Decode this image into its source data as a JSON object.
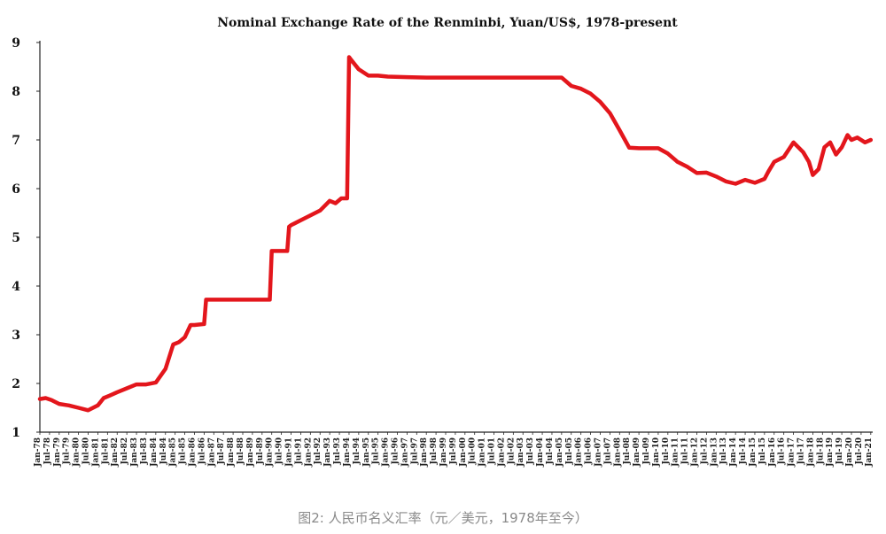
{
  "caption": "图2: 人民币名义汇率（元／美元，1978年至今）",
  "chart_data": {
    "type": "line",
    "title": "Nominal Exchange Rate of the  Renminbi, Yuan/US$, 1978-present",
    "xlabel": "",
    "ylabel": "",
    "ylim": [
      1,
      9
    ],
    "xlim": [
      1978.0,
      2021.1
    ],
    "y_ticks": [
      1,
      2,
      3,
      4,
      5,
      6,
      7,
      8,
      9
    ],
    "grid": false,
    "legend": "none",
    "line_color": "#e3161c",
    "x_tick_note": "dense rotated monthly labels 'Jan-78' ... 'Jan-21' along the x-axis",
    "series": [
      {
        "x": [
          1978.0,
          1978.3,
          1978.6,
          1979.0,
          1979.5,
          1980.0,
          1980.5,
          1981.0,
          1981.3,
          1981.6,
          1982.0,
          1982.5,
          1983.0,
          1983.5,
          1984.0,
          1984.5,
          1984.9,
          1985.2,
          1985.5,
          1985.8,
          1986.0,
          1986.5,
          1986.6,
          1987.0,
          1988.0,
          1989.0,
          1989.9,
          1990.0,
          1990.8,
          1990.9,
          1991.0,
          1991.5,
          1992.0,
          1992.5,
          1993.0,
          1993.3,
          1993.6,
          1993.9,
          1994.0,
          1994.1,
          1994.5,
          1995.0,
          1995.5,
          1996.0,
          1997.0,
          1998.0,
          1999.0,
          2000.0,
          2001.0,
          2002.0,
          2003.0,
          2004.0,
          2005.0,
          2005.5,
          2006.0,
          2006.5,
          2007.0,
          2007.5,
          2008.0,
          2008.5,
          2009.0,
          2010.0,
          2010.5,
          2011.0,
          2011.5,
          2012.0,
          2012.5,
          2013.0,
          2013.5,
          2014.0,
          2014.5,
          2015.0,
          2015.5,
          2015.7,
          2016.0,
          2016.5,
          2017.0,
          2017.5,
          2017.8,
          2018.0,
          2018.3,
          2018.6,
          2018.9,
          2019.2,
          2019.5,
          2019.8,
          2020.0,
          2020.3,
          2020.7,
          2021.0
        ],
        "y": [
          1.68,
          1.7,
          1.66,
          1.58,
          1.55,
          1.5,
          1.45,
          1.55,
          1.7,
          1.75,
          1.82,
          1.9,
          1.98,
          1.98,
          2.02,
          2.3,
          2.8,
          2.85,
          2.95,
          3.2,
          3.2,
          3.22,
          3.72,
          3.72,
          3.72,
          3.72,
          3.72,
          4.72,
          4.72,
          5.22,
          5.25,
          5.35,
          5.45,
          5.55,
          5.75,
          5.7,
          5.8,
          5.8,
          8.7,
          8.65,
          8.45,
          8.32,
          8.32,
          8.3,
          8.29,
          8.28,
          8.28,
          8.28,
          8.28,
          8.28,
          8.28,
          8.28,
          8.28,
          8.11,
          8.05,
          7.95,
          7.78,
          7.55,
          7.2,
          6.84,
          6.83,
          6.83,
          6.72,
          6.55,
          6.45,
          6.32,
          6.33,
          6.25,
          6.15,
          6.1,
          6.18,
          6.12,
          6.2,
          6.35,
          6.55,
          6.65,
          6.95,
          6.75,
          6.55,
          6.28,
          6.4,
          6.85,
          6.95,
          6.7,
          6.85,
          7.1,
          7.0,
          7.05,
          6.95,
          7.0
        ]
      }
    ]
  }
}
